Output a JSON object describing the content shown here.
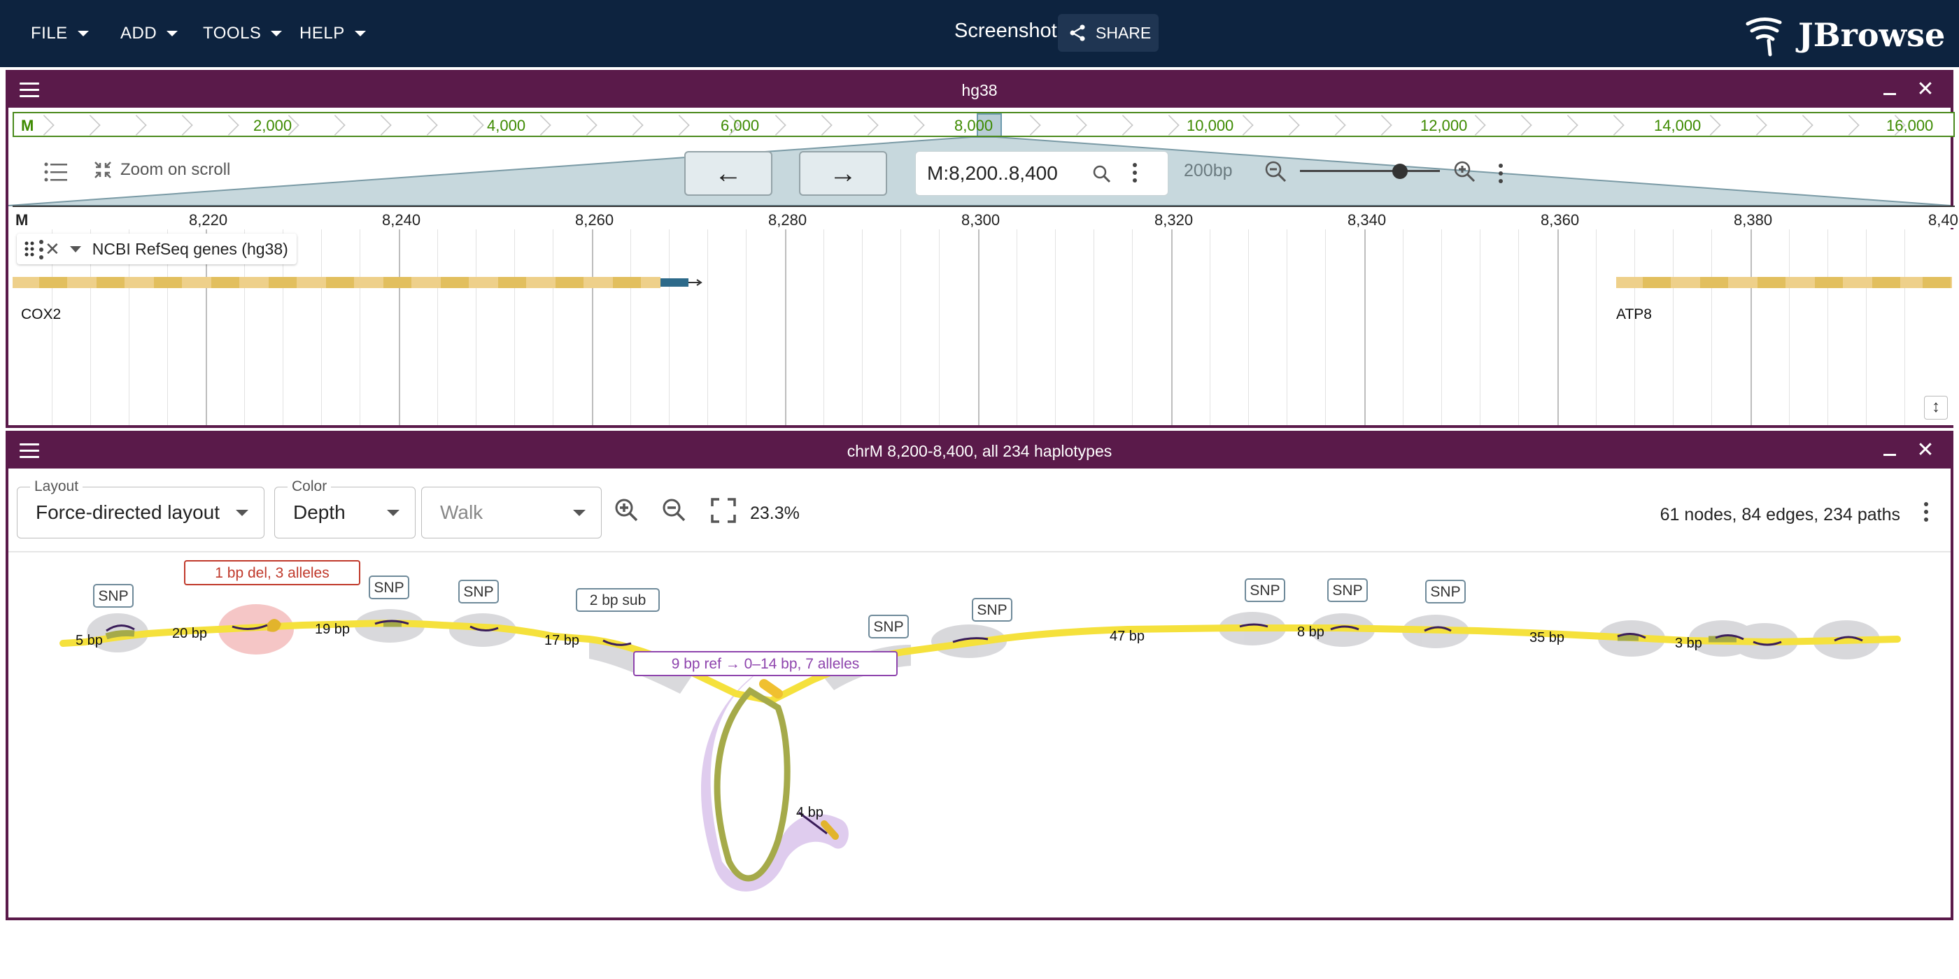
{
  "appbar": {
    "menu": [
      "FILE",
      "ADD",
      "TOOLS",
      "HELP"
    ],
    "view_title": "Screenshot",
    "share_label": "SHARE",
    "brand": "JBrowse"
  },
  "linear_view": {
    "title": "hg38",
    "overview": {
      "refname": "M",
      "ticks": [
        "2,000",
        "4,000",
        "6,000",
        "8,000",
        "10,000",
        "12,000",
        "14,000",
        "16,000"
      ]
    },
    "zoom_on_scroll": "Zoom on scroll",
    "location": "M:8,200..8,400",
    "zoom_level": "200bp",
    "ruler": {
      "refname": "M",
      "ticks": [
        "8,220",
        "8,240",
        "8,260",
        "8,280",
        "8,300",
        "8,320",
        "8,340",
        "8,360",
        "8,380",
        "8,40"
      ]
    },
    "track": {
      "name": "NCBI RefSeq genes (hg38)",
      "genes": [
        "COX2",
        "ATP8"
      ]
    }
  },
  "graph_view": {
    "title": "chrM 8,200-8,400, all 234 haplotypes",
    "layout": {
      "legend": "Layout",
      "value": "Force-directed layout"
    },
    "color": {
      "legend": "Color",
      "value": "Depth"
    },
    "walk": {
      "placeholder": "Walk"
    },
    "zoom_pct": "23.3%",
    "stats": "61 nodes, 84 edges, 234 paths",
    "edge_labels": [
      "5 bp",
      "20 bp",
      "19 bp",
      "17 bp",
      "47 bp",
      "8 bp",
      "35 bp",
      "3 bp",
      "4 bp"
    ],
    "snp_tag": "SNP",
    "annotations": {
      "del": "1 bp del, 3 alleles",
      "sub": "2 bp sub",
      "indel": "9 bp ref → 0–14 bp, 7 alleles"
    }
  },
  "colors": {
    "appbar": "#0d233f",
    "panel": "#5a1a4a",
    "path": "#f2e12e",
    "gene": "#e8c56a"
  }
}
